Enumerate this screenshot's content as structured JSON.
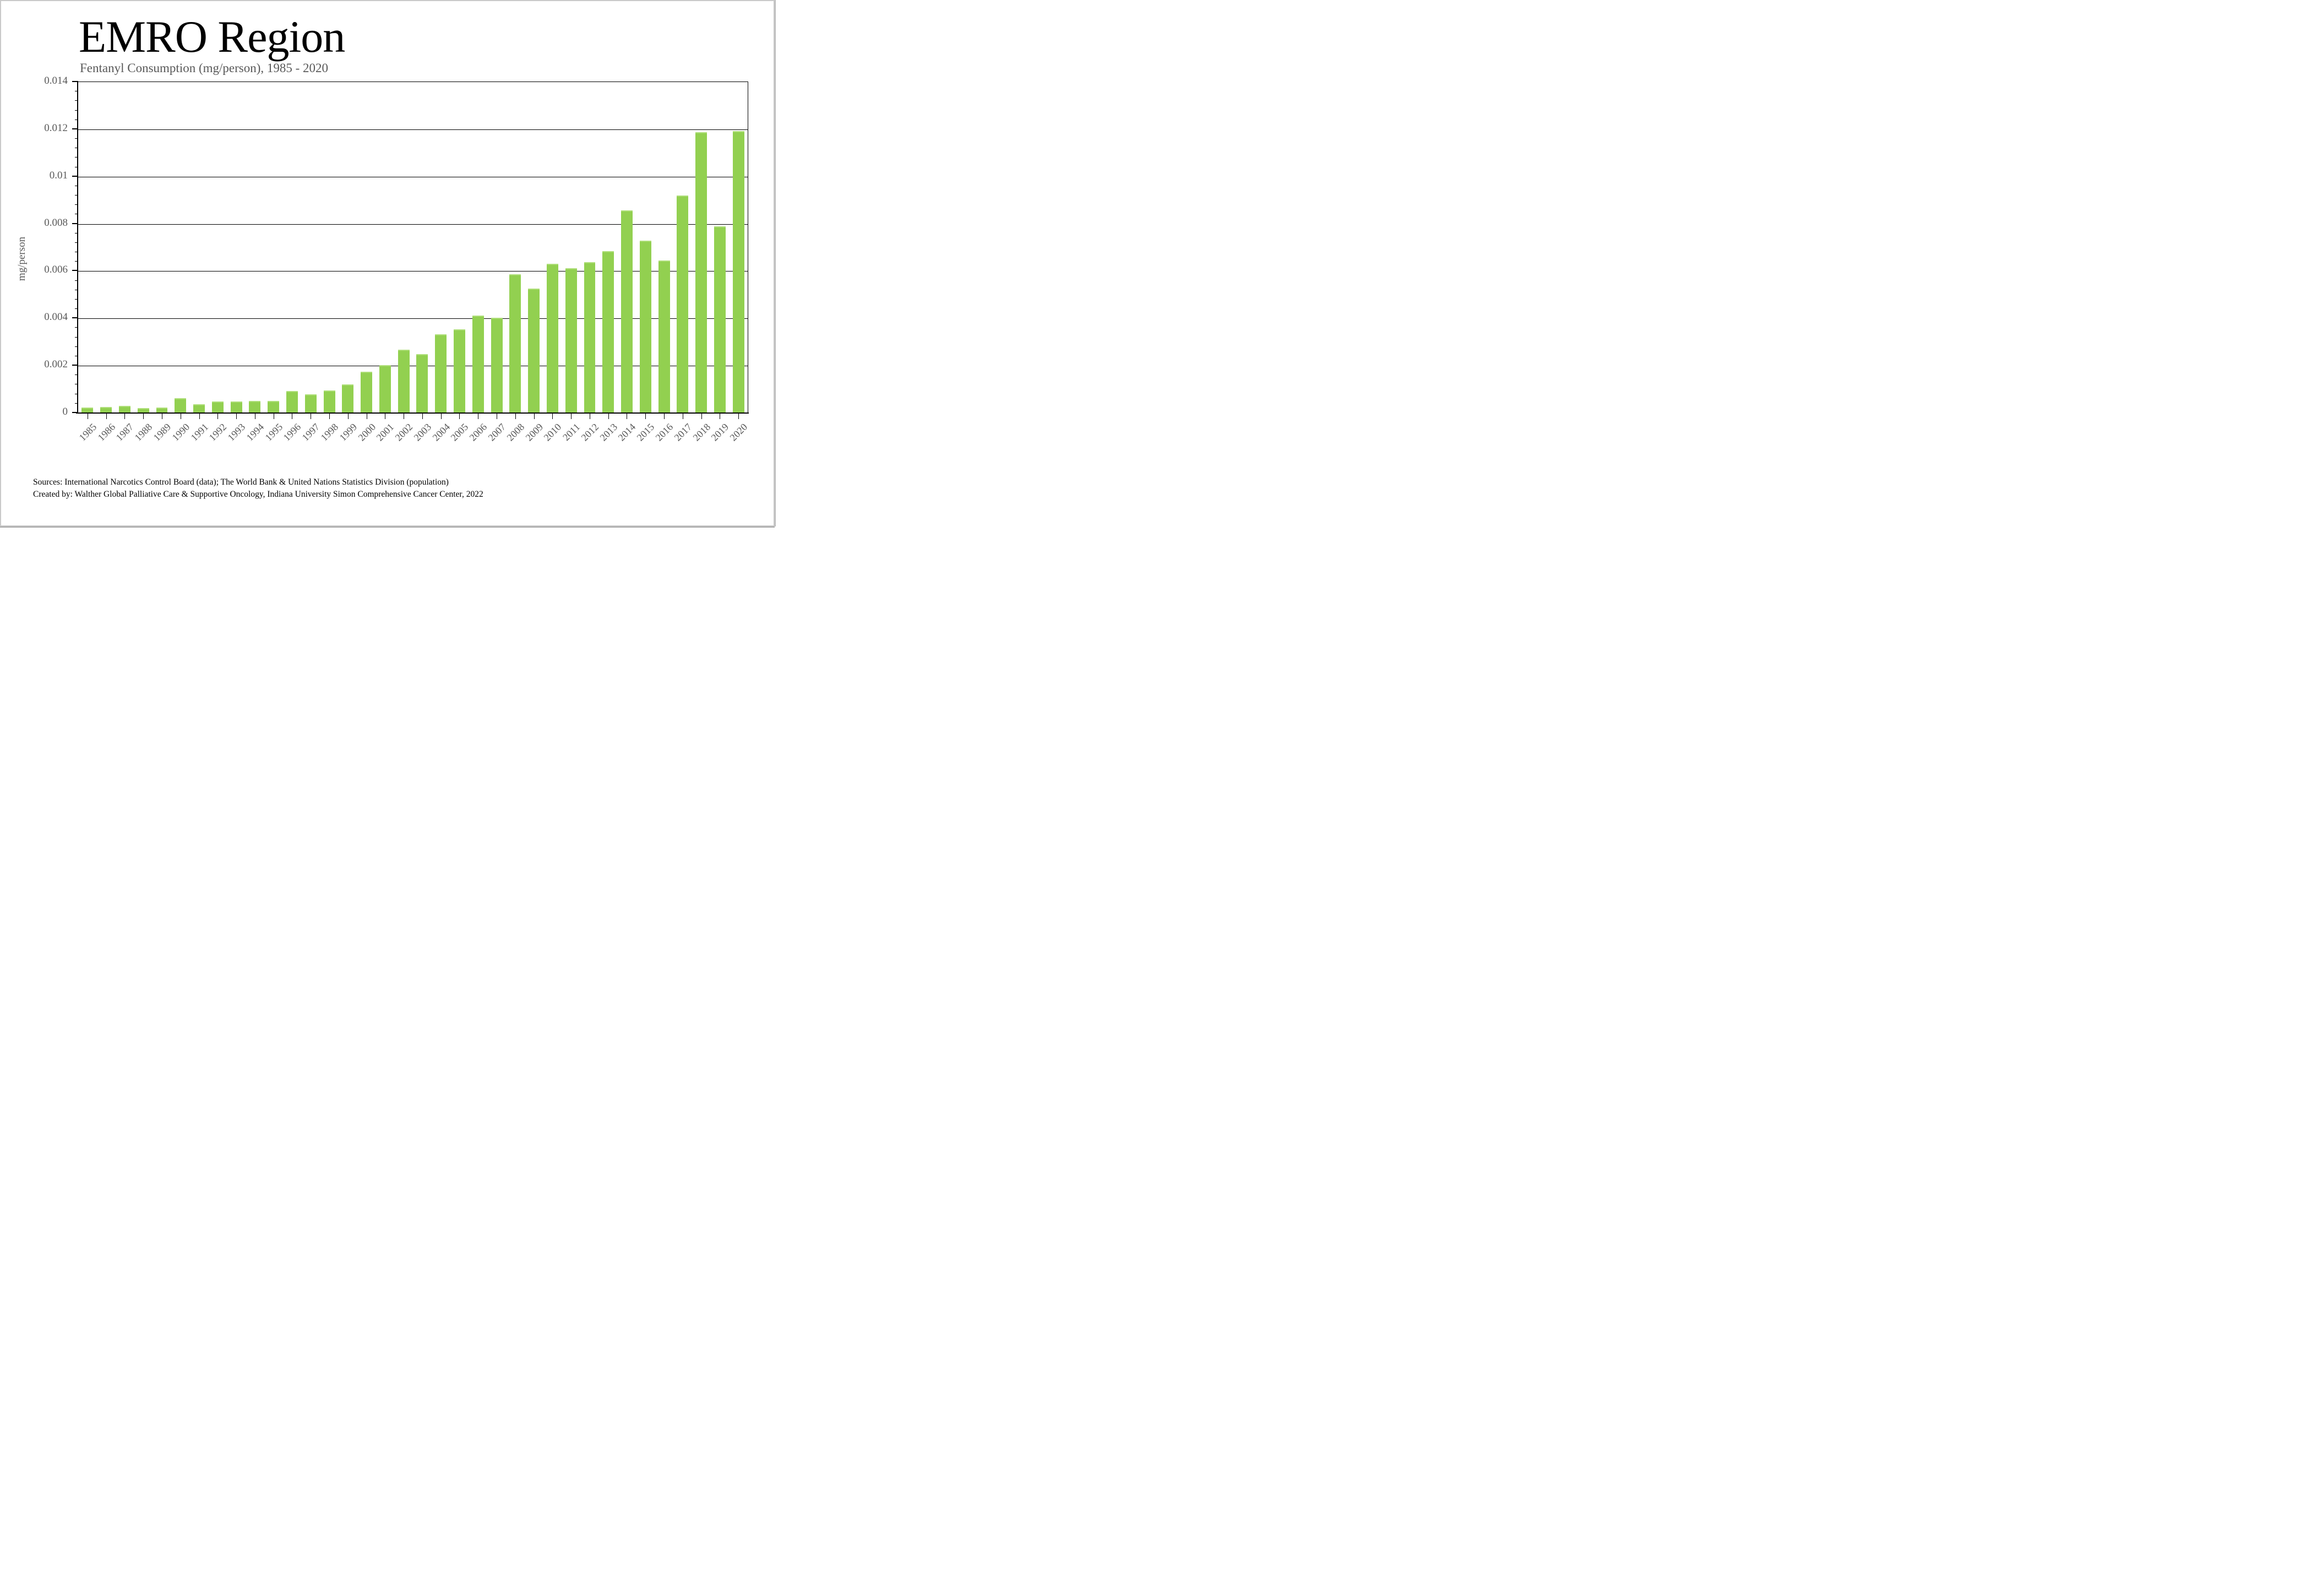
{
  "title": "EMRO Region",
  "subtitle": "Fentanyl Consumption (mg/person), 1985 - 2020",
  "y_axis_label": "mg/person",
  "footer": {
    "line1": "Sources: International Narcotics Control Board (data); The World Bank & United Nations Statistics Division (population)",
    "line2": "Created by: Walther Global Palliative Care & Supportive Oncology, Indiana University Simon Comprehensive Cancer Center, 2022"
  },
  "colors": {
    "bar": "#92d050",
    "bar_highlight": "#afdf7a",
    "axis_text": "#595959",
    "title_text": "#000000",
    "gridline": "#000000"
  },
  "chart_data": {
    "type": "bar",
    "title": "EMRO Region",
    "subtitle": "Fentanyl Consumption (mg/person), 1985 - 2020",
    "xlabel": "",
    "ylabel": "mg/person",
    "ylim": [
      0,
      0.014
    ],
    "y_major_step": 0.002,
    "y_minor_step": 0.0004,
    "grid": "horizontal-major",
    "legend_position": "none",
    "y_tick_labels": [
      "0",
      "0.002",
      "0.004",
      "0.006",
      "0.008",
      "0.01",
      "0.012",
      "0.014"
    ],
    "categories": [
      "1985",
      "1986",
      "1987",
      "1988",
      "1989",
      "1990",
      "1991",
      "1992",
      "1993",
      "1994",
      "1995",
      "1996",
      "1997",
      "1998",
      "1999",
      "2000",
      "2001",
      "2002",
      "2003",
      "2004",
      "2005",
      "2006",
      "2007",
      "2008",
      "2009",
      "2010",
      "2011",
      "2012",
      "2013",
      "2014",
      "2015",
      "2016",
      "2017",
      "2018",
      "2019",
      "2020"
    ],
    "values": [
      0.0002,
      0.00024,
      0.00028,
      0.00019,
      0.00022,
      0.00061,
      0.00036,
      0.00047,
      0.00046,
      0.00049,
      0.00048,
      0.00092,
      0.00077,
      0.00093,
      0.0012,
      0.00172,
      0.002,
      0.00265,
      0.00247,
      0.0033,
      0.00352,
      0.0041,
      0.004,
      0.00585,
      0.00525,
      0.0063,
      0.0061,
      0.00637,
      0.00683,
      0.00856,
      0.00727,
      0.00643,
      0.00919,
      0.01186,
      0.00787,
      0.0119
    ]
  }
}
